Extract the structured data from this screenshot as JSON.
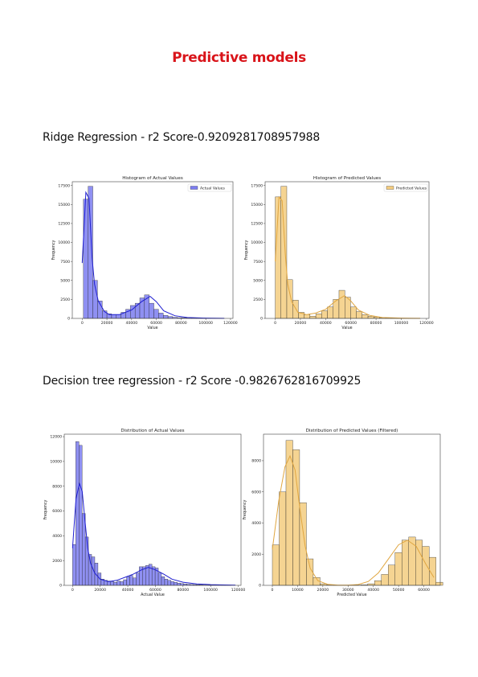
{
  "page": {
    "title": "Predictive models",
    "section1_heading": "Ridge Regression - r2 Score-0.9209281708957988",
    "section2_heading": "Decision tree regression - r2 Score -0.9826762816709925"
  },
  "colors": {
    "title": "#d9141a",
    "actual_fill": "#7b7cf0",
    "actual_line": "#1f1fd0",
    "predicted_fill": "#f3cc7f",
    "predicted_line": "#e0a640"
  },
  "chart_data": [
    {
      "type": "bar",
      "title": "Histogram of Actual Values",
      "xlabel": "Value",
      "ylabel": "Frequency",
      "legend": "Actual Values",
      "legend_position": "top-right",
      "grid": false,
      "kde": true,
      "xlim": [
        -8000,
        122000
      ],
      "ylim": [
        0,
        18000
      ],
      "xticks": [
        0,
        20000,
        40000,
        60000,
        80000,
        100000,
        120000
      ],
      "yticks": [
        0,
        2500,
        5000,
        7500,
        10000,
        12500,
        15000,
        17500
      ],
      "bin_start": 1000,
      "bin_width": 3800,
      "values": [
        15700,
        17400,
        5000,
        2300,
        1000,
        600,
        500,
        500,
        800,
        1200,
        1700,
        2000,
        2700,
        3100,
        2000,
        1200,
        700,
        400,
        250,
        150,
        100,
        80,
        60,
        40,
        30,
        20,
        15,
        10,
        5,
        5
      ],
      "kde_points": [
        [
          0,
          7300
        ],
        [
          3000,
          16600
        ],
        [
          5500,
          15800
        ],
        [
          8000,
          8000
        ],
        [
          10000,
          4500
        ],
        [
          13000,
          2300
        ],
        [
          18000,
          900
        ],
        [
          22000,
          500
        ],
        [
          30000,
          500
        ],
        [
          40000,
          1100
        ],
        [
          48000,
          2200
        ],
        [
          55000,
          2900
        ],
        [
          60000,
          2200
        ],
        [
          66000,
          1000
        ],
        [
          75000,
          350
        ],
        [
          85000,
          120
        ],
        [
          100000,
          40
        ],
        [
          115000,
          10
        ]
      ]
    },
    {
      "type": "bar",
      "title": "Histogram of Predicted Values",
      "xlabel": "Value",
      "ylabel": "Frequency",
      "legend": "Predicted Values",
      "legend_position": "top-right",
      "grid": false,
      "kde": true,
      "xlim": [
        -8000,
        122000
      ],
      "ylim": [
        0,
        18000
      ],
      "xticks": [
        0,
        20000,
        40000,
        60000,
        80000,
        100000,
        120000
      ],
      "yticks": [
        0,
        2500,
        5000,
        7500,
        10000,
        12500,
        15000,
        17500
      ],
      "bin_start": 0,
      "bin_width": 4600,
      "values": [
        16000,
        17400,
        5100,
        2400,
        800,
        500,
        300,
        600,
        1000,
        1500,
        2500,
        3700,
        2800,
        1500,
        900,
        500,
        300,
        200,
        100,
        50,
        30,
        20,
        10,
        5,
        5
      ],
      "kde_points": [
        [
          0,
          7500
        ],
        [
          3000,
          16000
        ],
        [
          5500,
          15500
        ],
        [
          8000,
          8500
        ],
        [
          10000,
          4500
        ],
        [
          13000,
          2200
        ],
        [
          18000,
          800
        ],
        [
          25000,
          500
        ],
        [
          32000,
          700
        ],
        [
          40000,
          1200
        ],
        [
          48000,
          2300
        ],
        [
          55000,
          3000
        ],
        [
          60000,
          2300
        ],
        [
          66000,
          1100
        ],
        [
          75000,
          400
        ],
        [
          85000,
          120
        ],
        [
          100000,
          40
        ],
        [
          115000,
          10
        ]
      ]
    },
    {
      "type": "bar",
      "title": "Distribution of Actual Values",
      "xlabel": "Actual Value",
      "ylabel": "Frequency",
      "grid": false,
      "kde": true,
      "xlim": [
        -6000,
        122000
      ],
      "ylim": [
        0,
        12200
      ],
      "xticks": [
        0,
        20000,
        40000,
        60000,
        80000,
        100000,
        120000
      ],
      "yticks": [
        0,
        2000,
        4000,
        6000,
        8000,
        10000,
        12000
      ],
      "bin_start": 0,
      "bin_width": 2300,
      "values": [
        3300,
        11600,
        11300,
        5800,
        3900,
        2500,
        2300,
        1800,
        1000,
        500,
        400,
        350,
        300,
        250,
        350,
        300,
        450,
        700,
        800,
        600,
        1000,
        1500,
        1500,
        1600,
        1700,
        1500,
        1400,
        1000,
        700,
        500,
        400,
        300,
        250,
        180,
        140,
        110,
        90,
        70,
        60,
        50,
        40,
        30,
        25,
        20,
        15,
        12,
        10,
        8,
        6,
        5
      ],
      "kde_points": [
        [
          0,
          3000
        ],
        [
          2500,
          7000
        ],
        [
          5000,
          8200
        ],
        [
          7000,
          7600
        ],
        [
          9000,
          5200
        ],
        [
          11000,
          3000
        ],
        [
          13000,
          1800
        ],
        [
          16000,
          1000
        ],
        [
          20000,
          500
        ],
        [
          26000,
          300
        ],
        [
          32000,
          400
        ],
        [
          38000,
          650
        ],
        [
          44000,
          900
        ],
        [
          50000,
          1250
        ],
        [
          55000,
          1450
        ],
        [
          60000,
          1250
        ],
        [
          66000,
          900
        ],
        [
          72000,
          500
        ],
        [
          80000,
          250
        ],
        [
          90000,
          120
        ],
        [
          100000,
          60
        ],
        [
          110000,
          30
        ],
        [
          118000,
          15
        ]
      ]
    },
    {
      "type": "bar",
      "title": "Distribution of Predicted Values (Filtered)",
      "xlabel": "Predicted Value",
      "ylabel": "Frequency",
      "grid": false,
      "kde": true,
      "xlim": [
        -3500,
        66500
      ],
      "ylim": [
        0,
        9700
      ],
      "xticks": [
        0,
        10000,
        20000,
        30000,
        40000,
        50000,
        60000
      ],
      "yticks": [
        0,
        2000,
        4000,
        6000,
        8000
      ],
      "bin_start": 0,
      "bin_width": 2700,
      "values": [
        2600,
        6000,
        9300,
        8700,
        5300,
        1700,
        500,
        100,
        30,
        10,
        5,
        5,
        10,
        30,
        100,
        300,
        700,
        1300,
        2100,
        2900,
        3100,
        2900,
        2500,
        1800,
        200
      ],
      "kde_points": [
        [
          0,
          2300
        ],
        [
          2500,
          5400
        ],
        [
          5000,
          7600
        ],
        [
          7000,
          8300
        ],
        [
          9000,
          7400
        ],
        [
          11000,
          4800
        ],
        [
          13000,
          2500
        ],
        [
          15000,
          1100
        ],
        [
          18000,
          300
        ],
        [
          22000,
          60
        ],
        [
          26000,
          10
        ],
        [
          30000,
          10
        ],
        [
          34000,
          50
        ],
        [
          38000,
          250
        ],
        [
          42000,
          800
        ],
        [
          46000,
          1700
        ],
        [
          50000,
          2600
        ],
        [
          53500,
          2900
        ],
        [
          57000,
          2500
        ],
        [
          61000,
          1300
        ],
        [
          64000,
          500
        ]
      ]
    }
  ]
}
